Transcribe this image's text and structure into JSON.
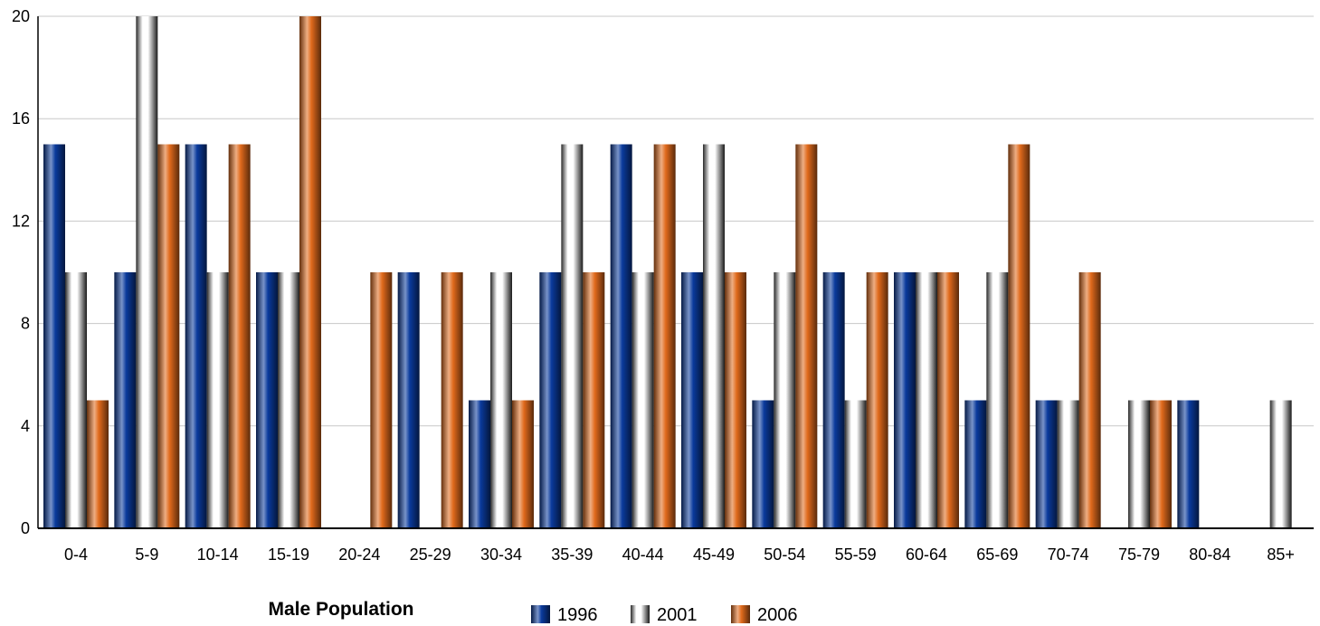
{
  "colors": {
    "1996": "#0a3a9c",
    "2001": "#b8b8b8",
    "2006": "#e06a1c",
    "gridline": "#c8c8c8",
    "axis": "#000000"
  },
  "chart_data": {
    "type": "bar",
    "title": "Male Population",
    "xlabel": "",
    "ylabel": "",
    "ylim": [
      0,
      20
    ],
    "yticks": [
      "0",
      "4",
      "8",
      "12",
      "16",
      "20"
    ],
    "grid": true,
    "legend_position": "bottom",
    "categories": [
      "0-4",
      "5-9",
      "10-14",
      "15-19",
      "20-24",
      "25-29",
      "30-34",
      "35-39",
      "40-44",
      "45-49",
      "50-54",
      "55-59",
      "60-64",
      "65-69",
      "70-74",
      "75-79",
      "80-84",
      "85+"
    ],
    "series": [
      {
        "name": "1996",
        "values": [
          15,
          10,
          15,
          10,
          0,
          10,
          5,
          10,
          15,
          10,
          5,
          10,
          10,
          5,
          5,
          0,
          5,
          0
        ]
      },
      {
        "name": "2001",
        "values": [
          10,
          20,
          10,
          10,
          0,
          0,
          10,
          15,
          10,
          15,
          10,
          5,
          10,
          10,
          5,
          5,
          0,
          5
        ]
      },
      {
        "name": "2006",
        "values": [
          5,
          15,
          15,
          20,
          10,
          10,
          5,
          10,
          15,
          10,
          15,
          10,
          10,
          15,
          10,
          5,
          0,
          0
        ]
      }
    ]
  }
}
